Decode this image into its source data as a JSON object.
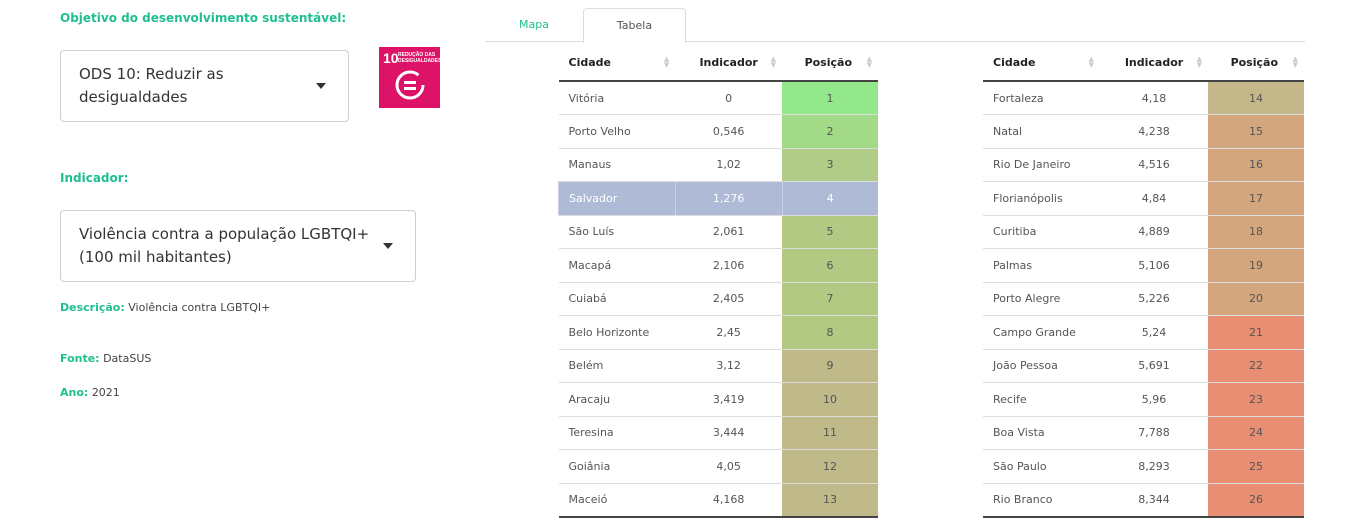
{
  "objective_label": "Objetivo do desenvolvimento sustentável:",
  "objective_select": {
    "value": "ODS 10: Reduzir as desigualdades"
  },
  "ods_badge": {
    "number": "10",
    "text": "REDUÇÃO DAS DESIGUALDADES",
    "color": "#dd1367"
  },
  "indicator_label": "Indicador:",
  "indicator_select": {
    "value": "Violência contra a população LGBTQI+ (100 mil habitantes)"
  },
  "description": {
    "key": "Descrição:",
    "value": "Violência contra LGBTQI+"
  },
  "source": {
    "key": "Fonte:",
    "value": "DataSUS"
  },
  "year": {
    "key": "Ano:",
    "value": "2021"
  },
  "tabs": [
    {
      "label": "Mapa",
      "active": false
    },
    {
      "label": "Tabela",
      "active": true
    }
  ],
  "table_headers": {
    "city": "Cidade",
    "indicator": "Indicador",
    "position": "Posição"
  },
  "highlight_city": "Salvador",
  "colors": {
    "accent": "#1fbf8f",
    "highlight": "#aebad6"
  },
  "rows": [
    {
      "city": "Vitória",
      "indicator": "0",
      "position": "1",
      "color": "#92e88a"
    },
    {
      "city": "Porto Velho",
      "indicator": "0,546",
      "position": "2",
      "color": "#a3da88"
    },
    {
      "city": "Manaus",
      "indicator": "1,02",
      "position": "3",
      "color": "#b0cc86"
    },
    {
      "city": "Salvador",
      "indicator": "1,276",
      "position": "4",
      "color": "#aebad6"
    },
    {
      "city": "São Luís",
      "indicator": "2,061",
      "position": "5",
      "color": "#b1c983"
    },
    {
      "city": "Macapá",
      "indicator": "2,106",
      "position": "6",
      "color": "#b1c983"
    },
    {
      "city": "Cuiabá",
      "indicator": "2,405",
      "position": "7",
      "color": "#b1c983"
    },
    {
      "city": "Belo Horizonte",
      "indicator": "2,45",
      "position": "8",
      "color": "#b1c983"
    },
    {
      "city": "Belém",
      "indicator": "3,12",
      "position": "9",
      "color": "#c0b98a"
    },
    {
      "city": "Aracaju",
      "indicator": "3,419",
      "position": "10",
      "color": "#c0b98a"
    },
    {
      "city": "Teresina",
      "indicator": "3,444",
      "position": "11",
      "color": "#c0b98a"
    },
    {
      "city": "Goiânia",
      "indicator": "4,05",
      "position": "12",
      "color": "#c0b98a"
    },
    {
      "city": "Maceió",
      "indicator": "4,168",
      "position": "13",
      "color": "#c0b98a"
    },
    {
      "city": "Fortaleza",
      "indicator": "4,18",
      "position": "14",
      "color": "#c4b88a"
    },
    {
      "city": "Natal",
      "indicator": "4,238",
      "position": "15",
      "color": "#d3a67e"
    },
    {
      "city": "Rio De Janeiro",
      "indicator": "4,516",
      "position": "16",
      "color": "#d3a67e"
    },
    {
      "city": "Florianópolis",
      "indicator": "4,84",
      "position": "17",
      "color": "#d3a67e"
    },
    {
      "city": "Curitiba",
      "indicator": "4,889",
      "position": "18",
      "color": "#d3a67e"
    },
    {
      "city": "Palmas",
      "indicator": "5,106",
      "position": "19",
      "color": "#d3a67e"
    },
    {
      "city": "Porto Alegre",
      "indicator": "5,226",
      "position": "20",
      "color": "#d3a67e"
    },
    {
      "city": "Campo Grande",
      "indicator": "5,24",
      "position": "21",
      "color": "#e88f73"
    },
    {
      "city": "João Pessoa",
      "indicator": "5,691",
      "position": "22",
      "color": "#e88f73"
    },
    {
      "city": "Recife",
      "indicator": "5,96",
      "position": "23",
      "color": "#e88f73"
    },
    {
      "city": "Boa Vista",
      "indicator": "7,788",
      "position": "24",
      "color": "#e88f73"
    },
    {
      "city": "São Paulo",
      "indicator": "8,293",
      "position": "25",
      "color": "#e88f73"
    },
    {
      "city": "Rio Branco",
      "indicator": "8,344",
      "position": "26",
      "color": "#e88f73"
    }
  ]
}
